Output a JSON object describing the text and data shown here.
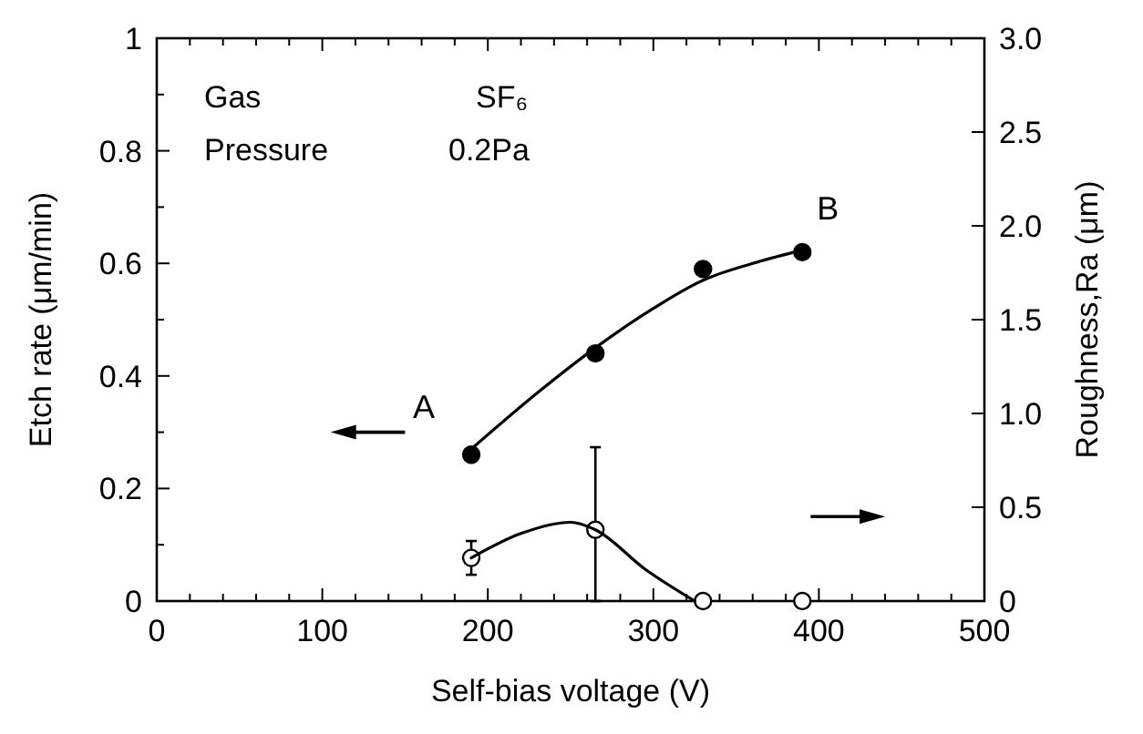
{
  "chart_data": {
    "type": "scatter",
    "xlabel": "Self-bias voltage (V)",
    "ylabel": "Etch rate (μm/min)",
    "y2label": "Roughness,Ra (μm)",
    "xlim": [
      0,
      500
    ],
    "ylim": [
      0,
      1
    ],
    "y2lim": [
      0,
      3
    ],
    "xticks": [
      0,
      {
        "value": 20,
        "label": null
      },
      {
        "value": 40,
        "label": null
      },
      {
        "value": 60,
        "label": null
      },
      {
        "value": 80,
        "label": null
      },
      100,
      {
        "value": 120,
        "label": null
      },
      {
        "value": 140,
        "label": null
      },
      {
        "value": 160,
        "label": null
      },
      {
        "value": 180,
        "label": null
      },
      200,
      {
        "value": 220,
        "label": null
      },
      {
        "value": 240,
        "label": null
      },
      {
        "value": 260,
        "label": null
      },
      {
        "value": 280,
        "label": null
      },
      300,
      {
        "value": 320,
        "label": null
      },
      {
        "value": 340,
        "label": null
      },
      {
        "value": 360,
        "label": null
      },
      {
        "value": 380,
        "label": null
      },
      400,
      {
        "value": 420,
        "label": null
      },
      {
        "value": 440,
        "label": null
      },
      {
        "value": 460,
        "label": null
      },
      {
        "value": 480,
        "label": null
      },
      500
    ],
    "yticks": [
      0,
      {
        "value": 0.1,
        "label": null
      },
      0.2,
      {
        "value": 0.3,
        "label": null
      },
      0.4,
      {
        "value": 0.5,
        "label": null
      },
      0.6,
      {
        "value": 0.7,
        "label": null
      },
      0.8,
      {
        "value": 0.9,
        "label": null
      },
      1
    ],
    "y2ticks": [
      0,
      0.5,
      {
        "value": 1,
        "label": "1.0"
      },
      1.5,
      {
        "value": 2,
        "label": "2.0"
      },
      2.5,
      {
        "value": 3,
        "label": "3.0"
      }
    ],
    "marker": "circle",
    "grid": false,
    "series": [
      {
        "color": "#000000",
        "x": [
          190,
          265,
          330,
          390
        ],
        "values": [
          0.26,
          0.44,
          0.59,
          0.62
        ]
      },
      {
        "axis": "y2",
        "color": "#ffffff",
        "x": [
          190,
          265,
          330,
          390
        ],
        "values": [
          0.23,
          0.38,
          0,
          0
        ],
        "errors": [
          [
            0.14,
            0.32
          ],
          [
            0,
            0.82
          ],
          null,
          null
        ]
      },
      {
        "type": "line",
        "marker": "none",
        "color": "#000000",
        "x": [
          190,
          230,
          265,
          300,
          330,
          360,
          385
        ],
        "values": [
          0.27,
          0.37,
          0.45,
          0.52,
          0.57,
          0.6,
          0.62
        ]
      },
      {
        "type": "line",
        "marker": "none",
        "axis": "y2",
        "color": "#000000",
        "x": [
          190,
          220,
          250,
          265,
          295,
          325
        ],
        "values": [
          0.23,
          0.36,
          0.42,
          0.38,
          0.17,
          0
        ]
      }
    ],
    "annotations": [
      "Gas",
      "SF₆",
      "Pressure",
      "0.2Pa",
      {
        "text": "A",
        "x": 190,
        "y": 0.26
      },
      {
        "text": "B",
        "x": 390,
        "y": 0.62
      }
    ]
  }
}
